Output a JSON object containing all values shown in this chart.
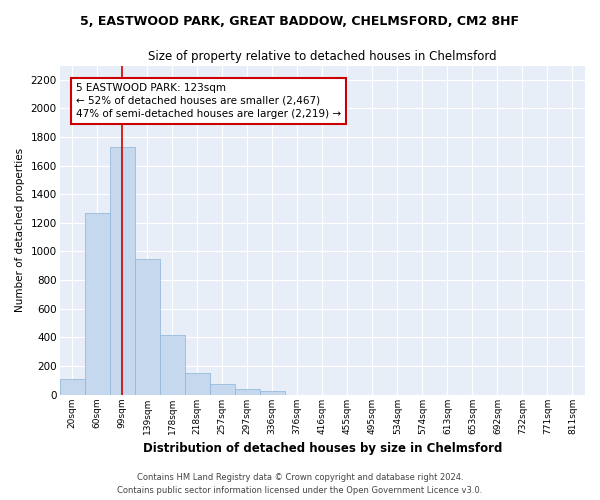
{
  "title": "5, EASTWOOD PARK, GREAT BADDOW, CHELMSFORD, CM2 8HF",
  "subtitle": "Size of property relative to detached houses in Chelmsford",
  "xlabel": "Distribution of detached houses by size in Chelmsford",
  "ylabel": "Number of detached properties",
  "bar_color": "#c5d8ee",
  "bar_edge_color": "#8ab4d8",
  "background_color": "#e8eef8",
  "grid_color": "#ffffff",
  "categories": [
    "20sqm",
    "60sqm",
    "99sqm",
    "139sqm",
    "178sqm",
    "218sqm",
    "257sqm",
    "297sqm",
    "336sqm",
    "376sqm",
    "416sqm",
    "455sqm",
    "495sqm",
    "534sqm",
    "574sqm",
    "613sqm",
    "653sqm",
    "692sqm",
    "732sqm",
    "771sqm",
    "811sqm"
  ],
  "values": [
    107,
    1270,
    1730,
    950,
    415,
    150,
    75,
    42,
    22,
    0,
    0,
    0,
    0,
    0,
    0,
    0,
    0,
    0,
    0,
    0,
    0
  ],
  "ylim": [
    0,
    2300
  ],
  "yticks": [
    0,
    200,
    400,
    600,
    800,
    1000,
    1200,
    1400,
    1600,
    1800,
    2000,
    2200
  ],
  "property_line_x": 2,
  "annotation_line1": "5 EASTWOOD PARK: 123sqm",
  "annotation_line2": "← 52% of detached houses are smaller (2,467)",
  "annotation_line3": "47% of semi-detached houses are larger (2,219) →",
  "annotation_box_color": "#ffffff",
  "annotation_border_color": "#cc0000",
  "footer1": "Contains HM Land Registry data © Crown copyright and database right 2024.",
  "footer2": "Contains public sector information licensed under the Open Government Licence v3.0.",
  "fig_width": 6.0,
  "fig_height": 5.0,
  "dpi": 100
}
